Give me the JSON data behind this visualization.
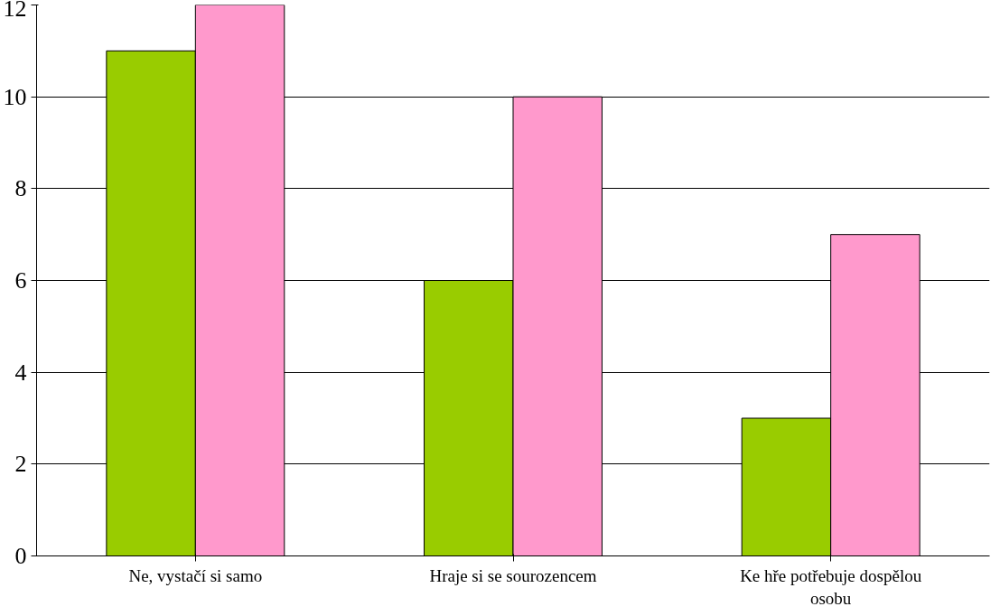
{
  "chart_data": {
    "type": "bar",
    "categories": [
      "Ne, vystačí si samo",
      "Hraje si se sourozencem",
      "Ke hře potřebuje dospělou osobu"
    ],
    "series": [
      {
        "color": "#99cc00",
        "values": [
          11,
          6,
          3
        ]
      },
      {
        "color": "#ff99cc",
        "values": [
          12,
          10,
          7
        ]
      }
    ],
    "ylim": [
      0,
      12
    ],
    "yticks": [
      0,
      2,
      4,
      6,
      8,
      10,
      12
    ],
    "grid": "y"
  }
}
